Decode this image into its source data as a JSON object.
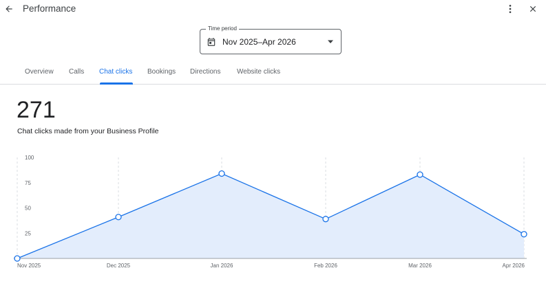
{
  "header": {
    "title": "Performance",
    "back_icon": "arrow-left-icon",
    "more_icon": "more-vertical-icon",
    "close_icon": "close-icon"
  },
  "period_selector": {
    "label": "Time period",
    "value": "Nov 2025–Apr 2026",
    "icon": "calendar-icon",
    "dropdown_icon": "caret-down-icon"
  },
  "tabs": [
    {
      "label": "Overview",
      "active": false
    },
    {
      "label": "Calls",
      "active": false
    },
    {
      "label": "Chat clicks",
      "active": true
    },
    {
      "label": "Bookings",
      "active": false
    },
    {
      "label": "Directions",
      "active": false
    },
    {
      "label": "Website clicks",
      "active": false
    }
  ],
  "metric": {
    "value": "271",
    "label": "Chat clicks made from your Business Profile"
  },
  "colors": {
    "accent": "#1a73e8",
    "line": "#1a73e8",
    "area_fill": "#e3edfc",
    "grid": "#dadce0"
  },
  "chart_data": {
    "type": "area",
    "categories": [
      "Nov 2025",
      "Dec 2025",
      "Jan 2026",
      "Feb 2026",
      "Mar 2026",
      "Apr 2026"
    ],
    "values": [
      0,
      41,
      84,
      39,
      83,
      24
    ],
    "ylim": [
      0,
      100
    ],
    "yticks": [
      "100",
      "75",
      "50",
      "25"
    ],
    "grid": true,
    "markers": true
  }
}
